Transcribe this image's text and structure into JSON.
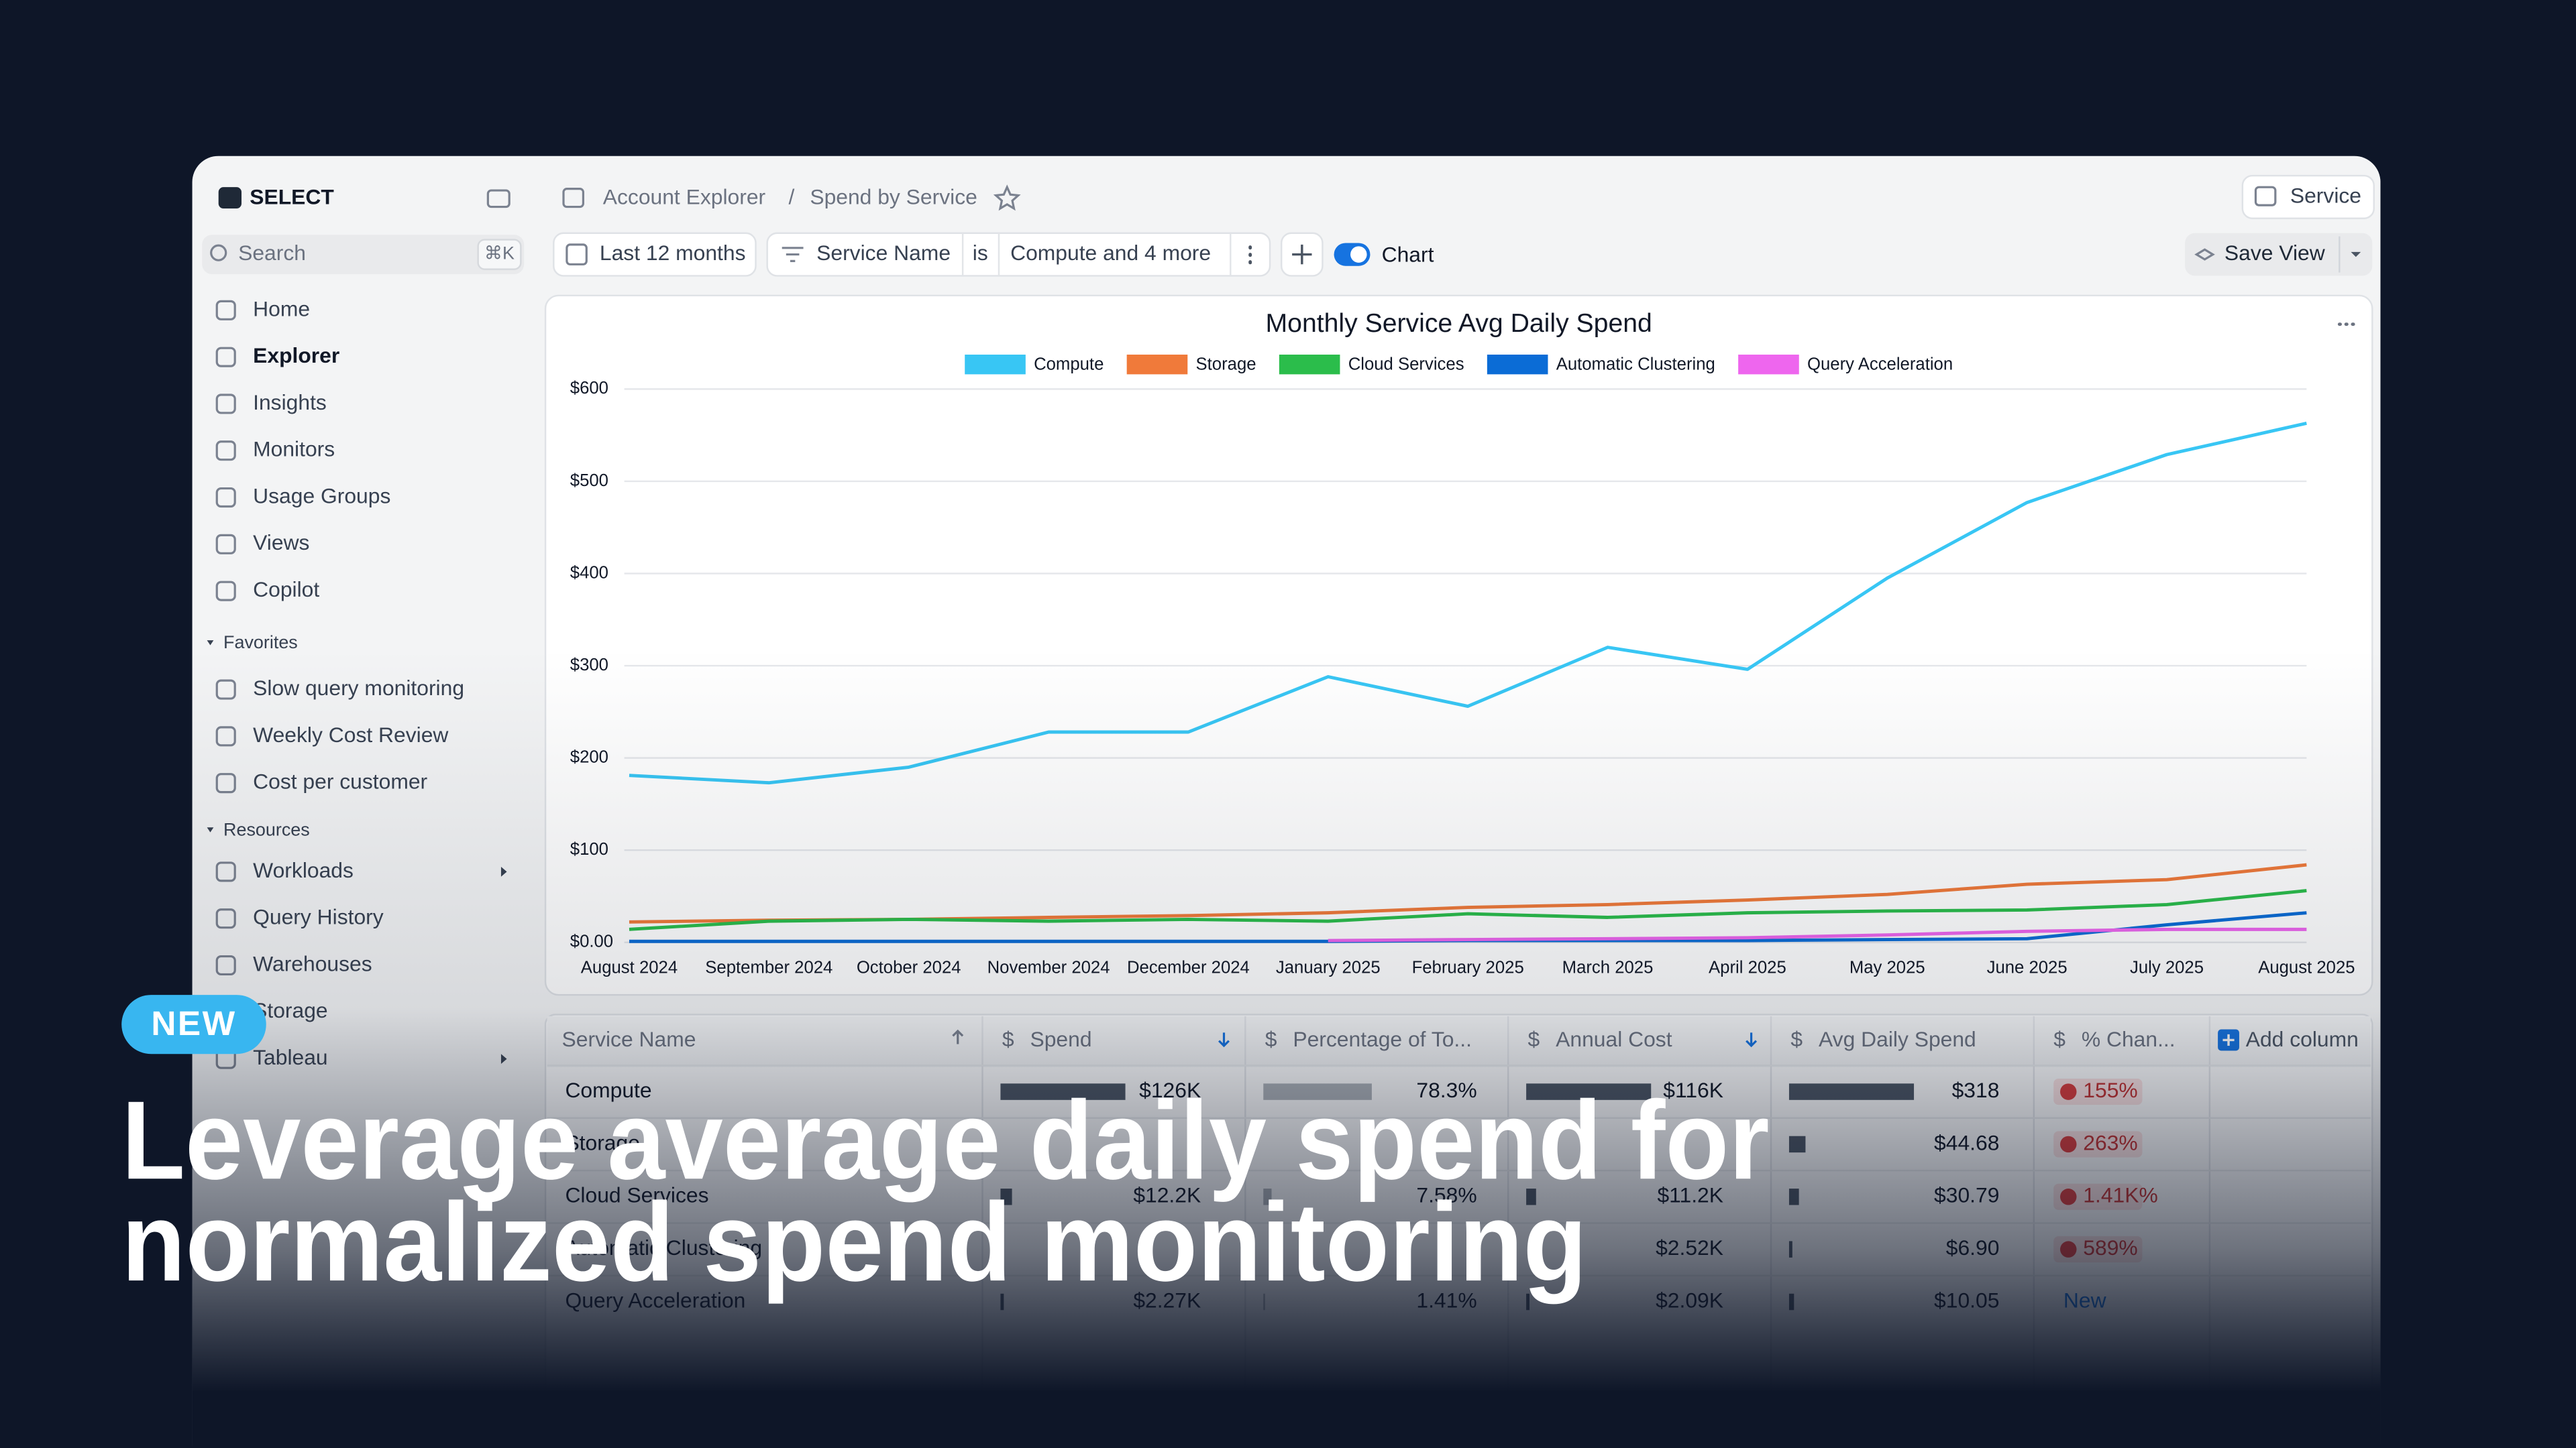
{
  "app": {
    "brand": "SELECT",
    "search": "Search",
    "search_shortcut": "⌘K",
    "nav": [
      "Home",
      "Explorer",
      "Insights",
      "Monitors",
      "Usage Groups",
      "Views",
      "Copilot"
    ],
    "favorites_label": "Favorites",
    "favorites": [
      "Slow query monitoring",
      "Weekly Cost Review",
      "Cost per customer"
    ],
    "resources_label": "Resources",
    "resources": [
      "Workloads",
      "Query History",
      "Warehouses",
      "Storage",
      "Tableau"
    ]
  },
  "breadcrumb": [
    "Account Explorer",
    "Spend by Service"
  ],
  "service_button": "Service",
  "toolbar": {
    "date": "Last 12 months",
    "filter_field": "Service Name",
    "filter_op": "is",
    "filter_value": "Compute and 4 more",
    "chart_toggle": "Chart",
    "save": "Save View"
  },
  "chart_data": {
    "type": "line",
    "title": "Monthly Service Avg Daily Spend",
    "categories": [
      "August 2024",
      "September 2024",
      "October 2024",
      "November 2024",
      "December 2024",
      "January 2025",
      "February 2025",
      "March 2025",
      "April 2025",
      "May 2025",
      "June 2025",
      "July 2025",
      "August 2025"
    ],
    "series": [
      {
        "name": "Compute",
        "color": "#38c6f4",
        "values": [
          181,
          173,
          190,
          228,
          228,
          288,
          256,
          320,
          296,
          395,
          477,
          529,
          563
        ]
      },
      {
        "name": "Storage",
        "color": "#f07a3a",
        "values": [
          22,
          24,
          25,
          27,
          29,
          32,
          38,
          41,
          46,
          52,
          63,
          68,
          84
        ]
      },
      {
        "name": "Cloud Services",
        "color": "#2bbd4b",
        "values": [
          14,
          23,
          25,
          23,
          25,
          23,
          31,
          27,
          32,
          34,
          35,
          41,
          56
        ]
      },
      {
        "name": "Automatic Clustering",
        "color": "#0b6cd6",
        "values": [
          1,
          1,
          1,
          1,
          1,
          1,
          2,
          2,
          2,
          3,
          4,
          19,
          32
        ]
      },
      {
        "name": "Query Acceleration",
        "color": "#ee66ee",
        "values": [
          null,
          null,
          null,
          null,
          null,
          2,
          3,
          4,
          5,
          8,
          12,
          14,
          14
        ]
      }
    ],
    "ylim": [
      0,
      600
    ],
    "yticks": [
      {
        "value": 0,
        "label": "$0.00"
      },
      {
        "value": 100,
        "label": "$100"
      },
      {
        "value": 200,
        "label": "$200"
      },
      {
        "value": 300,
        "label": "$300"
      },
      {
        "value": 400,
        "label": "$400"
      },
      {
        "value": 500,
        "label": "$500"
      },
      {
        "value": 600,
        "label": "$600"
      }
    ],
    "grid": true
  },
  "table": {
    "columns": [
      {
        "label": "Service Name"
      },
      {
        "icon": "$",
        "label": "Spend"
      },
      {
        "icon": "$",
        "label": "Percentage of To..."
      },
      {
        "icon": "$",
        "label": "Annual Cost"
      },
      {
        "icon": "$",
        "label": "Avg Daily Spend"
      },
      {
        "icon": "$",
        "label": "% Chan..."
      }
    ],
    "add_column": "Add column",
    "rows": [
      {
        "name": "Compute",
        "spend": "$126K",
        "pct": "78.3%",
        "annual": "$116K",
        "avg": "$318",
        "change": "155%"
      },
      {
        "name": "Storage",
        "avg": "$44.68",
        "change": "263%"
      },
      {
        "name": "Cloud Services",
        "spend": "$12.2K",
        "pct": "7.58%",
        "annual": "$11.2K",
        "avg": "$30.79",
        "change": "1.41K%"
      },
      {
        "name": "Automatic Clustering",
        "annual": "$2.52K",
        "avg": "$6.90",
        "change": "589%"
      },
      {
        "name": "Query Acceleration",
        "spend": "$2.27K",
        "pct": "1.41%",
        "annual": "$2.09K",
        "avg": "$10.05",
        "change": "New"
      }
    ]
  },
  "overlay": {
    "badge": "NEW",
    "headline_lines": [
      "Leverage average daily spend for",
      "normalized spend monitoring"
    ]
  }
}
